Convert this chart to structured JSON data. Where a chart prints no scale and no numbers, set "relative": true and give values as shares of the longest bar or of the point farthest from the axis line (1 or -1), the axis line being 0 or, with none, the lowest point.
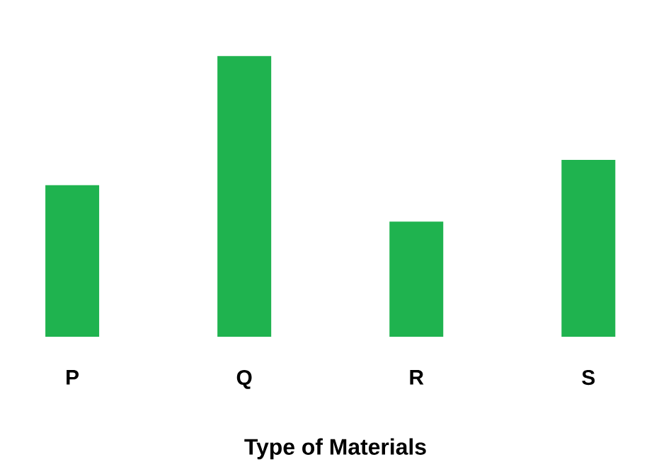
{
  "chart_data": {
    "type": "bar",
    "xlabel": "Type of Materials",
    "categories": [
      "P",
      "Q",
      "R",
      "S"
    ],
    "values": [
      0.54,
      1,
      0.41,
      0.63
    ],
    "color": "#1fb34f",
    "relative": true
  }
}
